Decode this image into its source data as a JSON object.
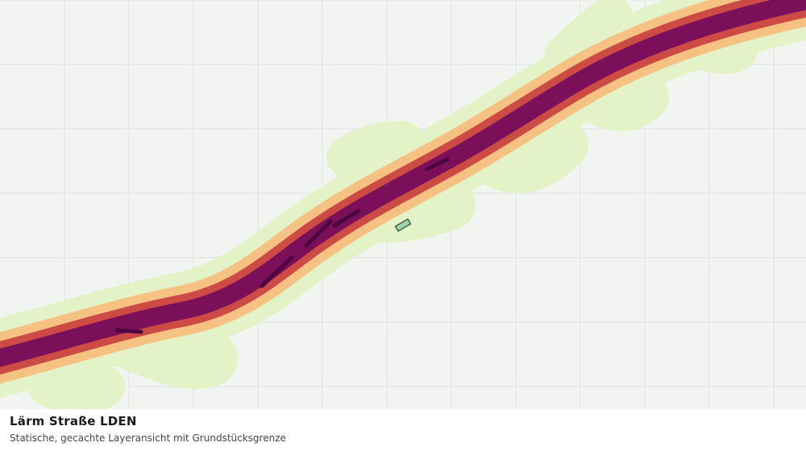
{
  "layer": {
    "title": "Lärm Straße LDEN",
    "subtitle": "Statische, gecachte Layeransicht mit Grundstücksgrenze"
  },
  "legend_colors": {
    "band_1": "#e3f3c7",
    "band_2": "#f5c284",
    "band_3": "#cc4b45",
    "band_4": "#7b0f5a",
    "band_5": "#4d0640",
    "parcel_fill": "#9fd3a6",
    "parcel_stroke": "#2e4a33"
  }
}
